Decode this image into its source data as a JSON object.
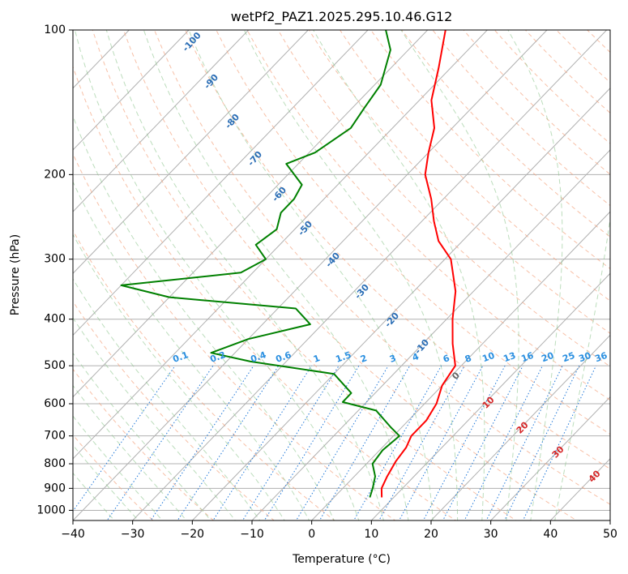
{
  "chart_data": {
    "type": "line",
    "diagram": "skew-t log-p",
    "title": "wetPf2_PAZ1.2025.295.10.46.G12",
    "xlabel": "Temperature (°C)",
    "ylabel": "Pressure (hPa)",
    "xlim": [
      -40,
      50
    ],
    "ylim": [
      1050,
      100
    ],
    "y_scale": "log",
    "grid": true,
    "x_ticks": [
      "−40",
      "−30",
      "−20",
      "−10",
      "0",
      "10",
      "20",
      "30",
      "40",
      "50"
    ],
    "y_ticks": [
      "100",
      "200",
      "300",
      "400",
      "500",
      "600",
      "700",
      "800",
      "900",
      "1000"
    ],
    "series": [
      {
        "name": "",
        "color": "#ff0000",
        "points": [
          {
            "t": 8.0,
            "p": 940
          },
          {
            "t": 6.5,
            "p": 900
          },
          {
            "t": 5.5,
            "p": 850
          },
          {
            "t": 4.5,
            "p": 790
          },
          {
            "t": 4.0,
            "p": 740
          },
          {
            "t": 3.0,
            "p": 700
          },
          {
            "t": 3.0,
            "p": 650
          },
          {
            "t": 2.0,
            "p": 600
          },
          {
            "t": 0.0,
            "p": 550
          },
          {
            "t": -1.0,
            "p": 500
          },
          {
            "t": -5.0,
            "p": 450
          },
          {
            "t": -9.0,
            "p": 400
          },
          {
            "t": -13.0,
            "p": 350
          },
          {
            "t": -19.0,
            "p": 300
          },
          {
            "t": -24.0,
            "p": 275
          },
          {
            "t": -28.0,
            "p": 250
          },
          {
            "t": -32.0,
            "p": 225
          },
          {
            "t": -37.0,
            "p": 200
          },
          {
            "t": -40.0,
            "p": 180
          },
          {
            "t": -43.0,
            "p": 160
          },
          {
            "t": -48.0,
            "p": 140
          },
          {
            "t": -52.0,
            "p": 120
          },
          {
            "t": -57.0,
            "p": 100
          }
        ]
      },
      {
        "name": "",
        "color": "#008000",
        "points": [
          {
            "t": 6.0,
            "p": 940
          },
          {
            "t": 5.0,
            "p": 900
          },
          {
            "t": 3.5,
            "p": 850
          },
          {
            "t": 1.0,
            "p": 800
          },
          {
            "t": 0.5,
            "p": 750
          },
          {
            "t": 1.0,
            "p": 700
          },
          {
            "t": -2.0,
            "p": 670
          },
          {
            "t": -7.0,
            "p": 620
          },
          {
            "t": -14.0,
            "p": 595
          },
          {
            "t": -14.0,
            "p": 570
          },
          {
            "t": -20.0,
            "p": 520
          },
          {
            "t": -36.0,
            "p": 490
          },
          {
            "t": -44.0,
            "p": 470
          },
          {
            "t": -40.0,
            "p": 440
          },
          {
            "t": -32.0,
            "p": 410
          },
          {
            "t": -37.0,
            "p": 380
          },
          {
            "t": -60.0,
            "p": 360
          },
          {
            "t": -70.0,
            "p": 340
          },
          {
            "t": -52.0,
            "p": 320
          },
          {
            "t": -50.0,
            "p": 300
          },
          {
            "t": -54.0,
            "p": 280
          },
          {
            "t": -53.0,
            "p": 260
          },
          {
            "t": -55.0,
            "p": 240
          },
          {
            "t": -55.0,
            "p": 225
          },
          {
            "t": -56.0,
            "p": 210
          },
          {
            "t": -62.0,
            "p": 190
          },
          {
            "t": -59.0,
            "p": 180
          },
          {
            "t": -57.0,
            "p": 160
          },
          {
            "t": -58.0,
            "p": 145
          },
          {
            "t": -59.0,
            "p": 130
          },
          {
            "t": -63.0,
            "p": 110
          },
          {
            "t": -67.0,
            "p": 100
          }
        ]
      }
    ],
    "dry_adiabat_labels": [
      "-100",
      "-90",
      "-80",
      "-70",
      "-60",
      "-50",
      "-40",
      "-30",
      "-20",
      "-10"
    ],
    "mixing_ratio_labels": [
      "0.1",
      "0.2",
      "0.4",
      "0.6",
      "1",
      "1.5",
      "2",
      "3",
      "4",
      "6",
      "8",
      "10",
      "13",
      "16",
      "20",
      "25",
      "30",
      "36"
    ],
    "moist_adiabat_labels": [
      "0",
      "10",
      "20",
      "30",
      "40"
    ]
  }
}
